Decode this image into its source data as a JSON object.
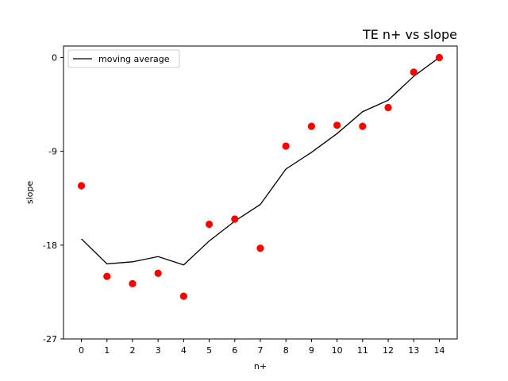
{
  "chart_data": {
    "type": "scatter",
    "title": "TE n+ vs slope",
    "xlabel": "n+",
    "ylabel": "slope",
    "xlim": [
      -0.7,
      14.7
    ],
    "ylim": [
      -27,
      1.1
    ],
    "xticks": [
      0,
      1,
      2,
      3,
      4,
      5,
      6,
      7,
      8,
      9,
      10,
      11,
      12,
      13,
      14
    ],
    "yticks": [
      0,
      -9,
      -18,
      -27
    ],
    "grid": false,
    "legend_position": "top-left",
    "series": [
      {
        "type": "scatter",
        "color": "#ff0000",
        "x": [
          0,
          1,
          2,
          3,
          4,
          5,
          6,
          7,
          8,
          9,
          10,
          11,
          12,
          13,
          14
        ],
        "y": [
          -12.3,
          -21.0,
          -21.7,
          -20.7,
          -22.9,
          -16.0,
          -15.5,
          -18.3,
          -8.5,
          -6.6,
          -6.5,
          -6.6,
          -4.8,
          -1.4,
          0.0
        ]
      },
      {
        "type": "line",
        "name": "moving average",
        "color": "#000000",
        "x": [
          0,
          1,
          2,
          3,
          4,
          5,
          6,
          7,
          8,
          9,
          10,
          11,
          12,
          13,
          14
        ],
        "y": [
          -17.4,
          -19.8,
          -19.6,
          -19.1,
          -19.9,
          -17.6,
          -15.7,
          -14.1,
          -10.7,
          -9.1,
          -7.3,
          -5.2,
          -4.1,
          -1.8,
          0.0
        ]
      }
    ]
  }
}
